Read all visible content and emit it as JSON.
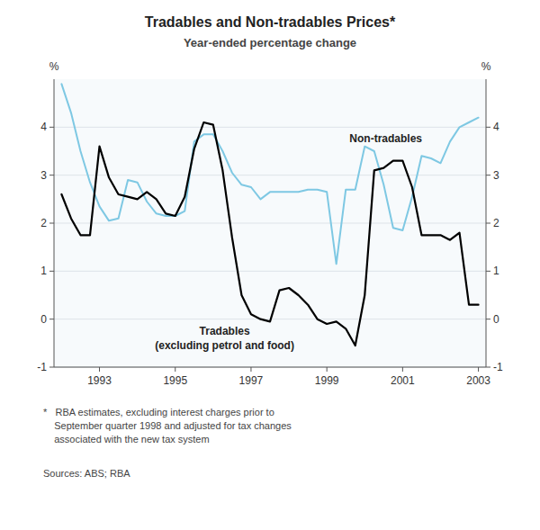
{
  "chart_data": {
    "type": "line",
    "title": "Tradables and Non-tradables Prices*",
    "subtitle": "Year-ended percentage change",
    "ylabel": "%",
    "y2label": "%",
    "x": [
      1992.0,
      1992.25,
      1992.5,
      1992.75,
      1993.0,
      1993.25,
      1993.5,
      1993.75,
      1994.0,
      1994.25,
      1994.5,
      1994.75,
      1995.0,
      1995.25,
      1995.5,
      1995.75,
      1996.0,
      1996.25,
      1996.5,
      1996.75,
      1997.0,
      1997.25,
      1997.5,
      1997.75,
      1998.0,
      1998.25,
      1998.5,
      1998.75,
      1999.0,
      1999.25,
      1999.5,
      1999.75,
      2000.0,
      2000.25,
      2000.5,
      2000.75,
      2001.0,
      2001.25,
      2001.5,
      2001.75,
      2002.0,
      2002.25,
      2002.5,
      2002.75,
      2003.0
    ],
    "series": [
      {
        "name": "Non-tradables",
        "color": "#7ec8e3",
        "values": [
          4.9,
          4.3,
          3.5,
          2.85,
          2.35,
          2.05,
          2.1,
          2.9,
          2.85,
          2.45,
          2.2,
          2.15,
          2.15,
          2.25,
          3.7,
          3.85,
          3.85,
          3.5,
          3.05,
          2.8,
          2.75,
          2.5,
          2.65,
          2.65,
          2.65,
          2.65,
          2.7,
          2.7,
          2.65,
          1.15,
          2.7,
          2.7,
          3.6,
          3.5,
          2.8,
          1.9,
          1.85,
          2.55,
          3.4,
          3.35,
          3.25,
          3.7,
          4.0,
          4.1,
          4.2
        ]
      },
      {
        "name": "Tradables",
        "color": "#000000",
        "values": [
          2.6,
          2.1,
          1.75,
          1.75,
          3.6,
          2.95,
          2.6,
          2.55,
          2.5,
          2.65,
          2.5,
          2.2,
          2.15,
          2.55,
          3.55,
          4.1,
          4.05,
          3.1,
          1.7,
          0.5,
          0.1,
          0.0,
          -0.05,
          0.6,
          0.65,
          0.5,
          0.3,
          0.0,
          -0.1,
          -0.05,
          -0.2,
          -0.55,
          0.5,
          3.1,
          3.15,
          3.3,
          3.3,
          2.75,
          1.75,
          1.75,
          1.75,
          1.65,
          1.8,
          0.3,
          0.3
        ]
      }
    ],
    "annotations": [
      "(excluding petrol and food)"
    ],
    "xlim": [
      1991.8,
      2003.2
    ],
    "xticks": [
      1993,
      1995,
      1997,
      1999,
      2001,
      2003
    ],
    "ylim": [
      -1,
      5
    ],
    "yticks": [
      -1,
      0,
      1,
      2,
      3,
      4
    ],
    "y2lim": [
      -1,
      5
    ],
    "y2ticks": [
      -1,
      0,
      1,
      2,
      3,
      4
    ],
    "grid": true,
    "footnote": "*   RBA estimates, excluding interest charges prior to\n    September quarter 1998 and adjusted for tax changes\n    associated with the new tax system",
    "source": "Sources: ABS; RBA"
  }
}
